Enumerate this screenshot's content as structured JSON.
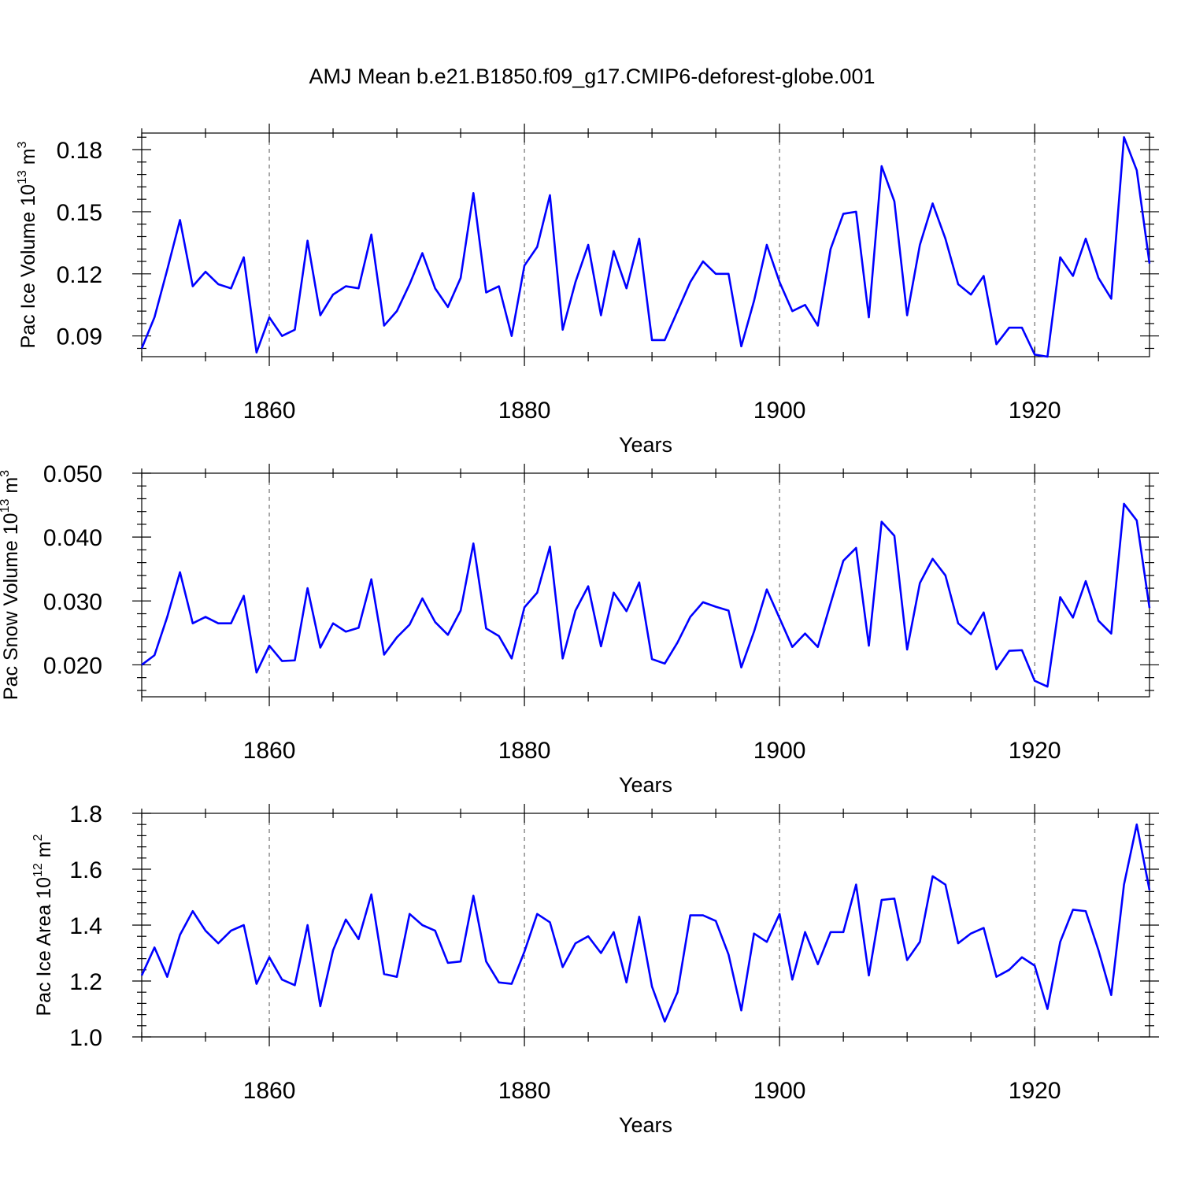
{
  "title": "AMJ Mean b.e21.B1850.f09_g17.CMIP6-deforest-globe.001",
  "chart_data": [
    {
      "type": "line",
      "title": "",
      "xlabel": "Years",
      "ylabel": {
        "prefix": "Pac Ice Volume 10",
        "exp": "13",
        "unit": " m",
        "unit_exp": "3"
      },
      "xlim": [
        1850,
        1929
      ],
      "ylim": [
        0.08,
        0.188
      ],
      "xticks": [
        1860,
        1880,
        1900,
        1920
      ],
      "xtick_labels": [
        "1860",
        "1880",
        "1900",
        "1920"
      ],
      "yticks": [
        0.09,
        0.12,
        0.15,
        0.18
      ],
      "ytick_labels": [
        "0.09",
        "0.12",
        "0.15",
        "0.18"
      ],
      "x_start": 1850,
      "color": "#0000ff",
      "values": [
        0.084,
        0.099,
        0.122,
        0.146,
        0.114,
        0.121,
        0.115,
        0.113,
        0.128,
        0.082,
        0.099,
        0.09,
        0.093,
        0.136,
        0.1,
        0.11,
        0.114,
        0.113,
        0.139,
        0.095,
        0.102,
        0.115,
        0.13,
        0.113,
        0.104,
        0.118,
        0.159,
        0.111,
        0.114,
        0.09,
        0.124,
        0.133,
        0.158,
        0.093,
        0.116,
        0.134,
        0.1,
        0.131,
        0.113,
        0.137,
        0.088,
        0.088,
        0.102,
        0.116,
        0.126,
        0.12,
        0.12,
        0.085,
        0.107,
        0.134,
        0.116,
        0.102,
        0.105,
        0.095,
        0.132,
        0.149,
        0.15,
        0.099,
        0.172,
        0.155,
        0.1,
        0.134,
        0.154,
        0.137,
        0.115,
        0.11,
        0.119,
        0.086,
        0.094,
        0.094,
        0.081,
        0.08,
        0.128,
        0.119,
        0.137,
        0.118,
        0.108,
        0.186,
        0.17,
        0.125
      ]
    },
    {
      "type": "line",
      "title": "",
      "xlabel": "Years",
      "ylabel": {
        "prefix": "Pac Snow Volume 10",
        "exp": "13",
        "unit": " m",
        "unit_exp": "3"
      },
      "xlim": [
        1850,
        1929
      ],
      "ylim": [
        0.015,
        0.05
      ],
      "xticks": [
        1860,
        1880,
        1900,
        1920
      ],
      "xtick_labels": [
        "1860",
        "1880",
        "1900",
        "1920"
      ],
      "yticks": [
        0.02,
        0.03,
        0.04,
        0.05
      ],
      "ytick_labels": [
        "0.020",
        "0.030",
        "0.040",
        "0.050"
      ],
      "x_start": 1850,
      "color": "#0000ff",
      "values": [
        0.02,
        0.0215,
        0.0275,
        0.0345,
        0.0265,
        0.0275,
        0.0265,
        0.0265,
        0.0308,
        0.0188,
        0.023,
        0.0206,
        0.0207,
        0.032,
        0.0227,
        0.0265,
        0.0252,
        0.0258,
        0.0334,
        0.0216,
        0.0243,
        0.0263,
        0.0304,
        0.0267,
        0.0247,
        0.0285,
        0.039,
        0.0257,
        0.0245,
        0.021,
        0.029,
        0.0313,
        0.0385,
        0.021,
        0.0285,
        0.0323,
        0.0229,
        0.0313,
        0.0284,
        0.0329,
        0.0209,
        0.0202,
        0.0235,
        0.0275,
        0.0298,
        0.0291,
        0.0285,
        0.0196,
        0.0252,
        0.0318,
        0.0273,
        0.0228,
        0.0249,
        0.0228,
        0.0296,
        0.0363,
        0.0383,
        0.023,
        0.0424,
        0.0402,
        0.0224,
        0.0328,
        0.0366,
        0.034,
        0.0265,
        0.0248,
        0.0282,
        0.0193,
        0.0222,
        0.0223,
        0.0175,
        0.0166,
        0.0306,
        0.0274,
        0.0331,
        0.0269,
        0.0249,
        0.0452,
        0.0426,
        0.0289
      ]
    },
    {
      "type": "line",
      "title": "",
      "xlabel": "Years",
      "ylabel": {
        "prefix": "Pac Ice Area 10",
        "exp": "12",
        "unit": " m",
        "unit_exp": "2"
      },
      "xlim": [
        1850,
        1929
      ],
      "ylim": [
        1.0,
        1.8
      ],
      "xticks": [
        1860,
        1880,
        1900,
        1920
      ],
      "xtick_labels": [
        "1860",
        "1880",
        "1900",
        "1920"
      ],
      "yticks": [
        1.0,
        1.2,
        1.4,
        1.6,
        1.8
      ],
      "ytick_labels": [
        "1.0",
        "1.2",
        "1.4",
        "1.6",
        "1.8"
      ],
      "x_start": 1850,
      "color": "#0000ff",
      "values": [
        1.22,
        1.32,
        1.215,
        1.365,
        1.45,
        1.38,
        1.335,
        1.38,
        1.4,
        1.19,
        1.285,
        1.205,
        1.185,
        1.4,
        1.11,
        1.31,
        1.42,
        1.35,
        1.51,
        1.225,
        1.215,
        1.44,
        1.4,
        1.38,
        1.265,
        1.27,
        1.505,
        1.27,
        1.195,
        1.19,
        1.305,
        1.44,
        1.41,
        1.25,
        1.335,
        1.36,
        1.3,
        1.375,
        1.195,
        1.43,
        1.18,
        1.055,
        1.16,
        1.435,
        1.435,
        1.415,
        1.295,
        1.095,
        1.37,
        1.34,
        1.44,
        1.205,
        1.375,
        1.26,
        1.375,
        1.375,
        1.545,
        1.22,
        1.49,
        1.495,
        1.275,
        1.34,
        1.575,
        1.545,
        1.335,
        1.37,
        1.39,
        1.215,
        1.24,
        1.285,
        1.255,
        1.1,
        1.34,
        1.455,
        1.45,
        1.31,
        1.15,
        1.545,
        1.76,
        1.525
      ]
    }
  ]
}
